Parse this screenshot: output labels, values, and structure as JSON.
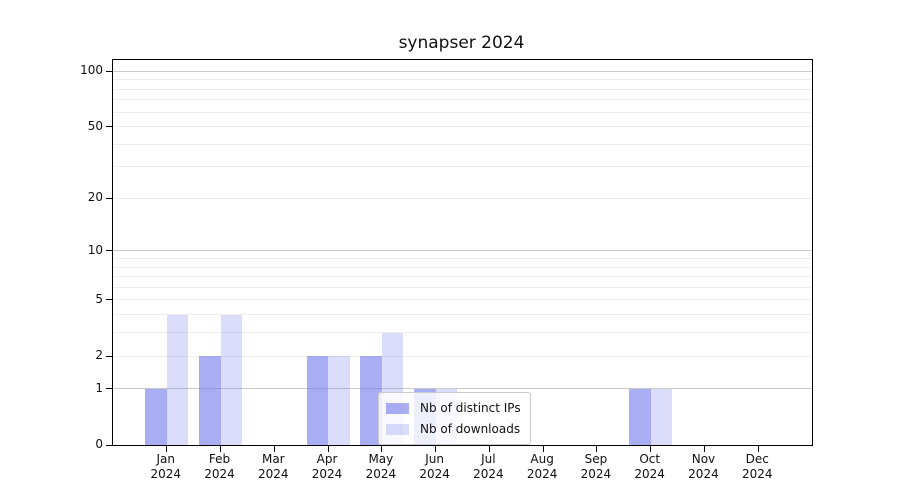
{
  "chart_data": {
    "type": "bar",
    "title": "synapser 2024",
    "year_label": "2024",
    "months": [
      "Jan",
      "Feb",
      "Mar",
      "Apr",
      "May",
      "Jun",
      "Jul",
      "Aug",
      "Sep",
      "Oct",
      "Nov",
      "Dec"
    ],
    "series": [
      {
        "name": "Nb of distinct IPs",
        "color": "rgba(111,120,237,0.6)",
        "values": [
          1,
          2,
          0,
          2,
          2,
          1,
          0,
          0,
          0,
          1,
          0,
          0
        ]
      },
      {
        "name": "Nb of downloads",
        "color": "rgba(111,120,237,0.25)",
        "values": [
          4,
          4,
          0,
          2,
          3,
          1,
          0,
          0,
          0,
          1,
          0,
          0
        ]
      }
    ],
    "yscale": "log1p",
    "ylim": [
      0,
      115
    ],
    "yticks": [
      0,
      1,
      2,
      5,
      10,
      20,
      50,
      100
    ],
    "major_gridlines": [
      1,
      10,
      100
    ],
    "minor_gridlines": [
      2,
      3,
      4,
      5,
      6,
      7,
      8,
      9,
      20,
      30,
      40,
      50,
      60,
      70,
      80,
      90
    ],
    "grid_major_color": "#c9c9c9",
    "grid_minor_color": "#ededed",
    "legend_position": "inside bottom, left of center",
    "xgrid": false
  }
}
